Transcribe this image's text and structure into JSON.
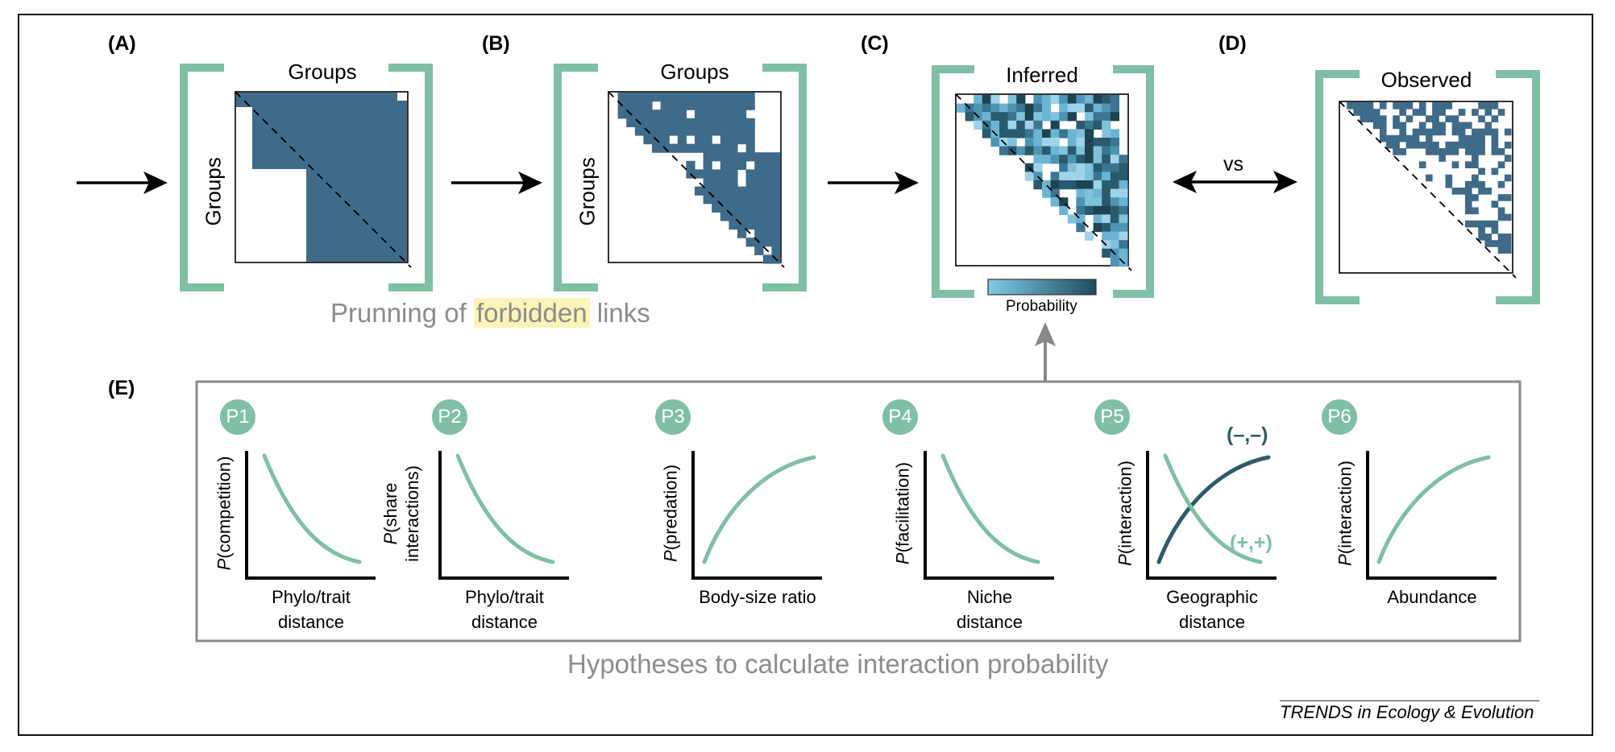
{
  "colors": {
    "bracket": "#7fbfa3",
    "matrix_fill": "#3f6b89",
    "curve_green": "#7fbfa3",
    "curve_dark": "#2f5a6b",
    "gradient_low": "#7fcbe9",
    "gradient_high": "#1e4d5c",
    "caption_grey": "#8c8c8c",
    "highlight": "#fbf4b6"
  },
  "panels": {
    "a": {
      "label": "(A)",
      "title": "Groups",
      "axis": "Groups"
    },
    "b": {
      "label": "(B)",
      "title": "Groups",
      "axis": "Groups"
    },
    "c": {
      "label": "(C)",
      "title": "Inferred",
      "legend": "Probability"
    },
    "d": {
      "label": "(D)",
      "title": "Observed",
      "compare": "vs"
    },
    "e": {
      "label": "(E)"
    }
  },
  "pruning_caption": {
    "before": "Prunning of ",
    "highlight": "forbidden",
    "after": " links"
  },
  "hypotheses_caption": "Hypotheses to calculate interaction probability",
  "hypotheses": [
    {
      "badge": "P1",
      "y_prefix": "P",
      "y_rest": "(competition)",
      "y_line2": "",
      "x_line1": "Phylo/trait",
      "x_line2": "distance",
      "trend": "decreasing"
    },
    {
      "badge": "P2",
      "y_prefix": "P",
      "y_rest": "(share",
      "y_line2": "interactions)",
      "x_line1": "Phylo/trait",
      "x_line2": "distance",
      "trend": "decreasing"
    },
    {
      "badge": "P3",
      "y_prefix": "P",
      "y_rest": "(predation)",
      "y_line2": "",
      "x_line1": "Body-size ratio",
      "x_line2": "",
      "trend": "increasing"
    },
    {
      "badge": "P4",
      "y_prefix": "P",
      "y_rest": "(facilitation)",
      "y_line2": "",
      "x_line1": "Niche",
      "x_line2": "distance",
      "trend": "decreasing"
    },
    {
      "badge": "P5",
      "y_prefix": "P",
      "y_rest": "(interaction)",
      "y_line2": "",
      "x_line1": "Geographic",
      "x_line2": "distance",
      "trend": "both",
      "series": [
        {
          "name": "(–,–)",
          "trend": "increasing"
        },
        {
          "name": "(+,+)",
          "trend": "decreasing"
        }
      ]
    },
    {
      "badge": "P6",
      "y_prefix": "P",
      "y_rest": "(interaction)",
      "y_line2": "",
      "x_line1": "Abundance",
      "x_line2": "",
      "trend": "increasing"
    }
  ],
  "credit": "TRENDS in Ecology & Evolution"
}
